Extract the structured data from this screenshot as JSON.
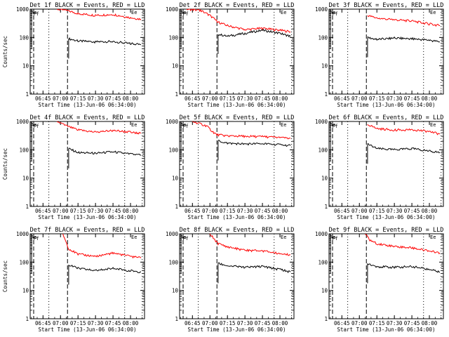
{
  "chart_data": [
    {
      "type": "line",
      "title": "Det 1f BLACK = Events, RED = LLD",
      "xlabel": "Start Time (13-Jun-06 06:34:00)",
      "ylabel": "Counts/sec",
      "x_ticks": [
        "06:45",
        "07:00",
        "07:15",
        "07:30",
        "07:45",
        "08:00"
      ],
      "y_ticks": [
        "1",
        "10",
        "100",
        "1000"
      ],
      "ylim": [
        1,
        1000
      ],
      "y_scale": "log",
      "markers": [
        "Aa",
        "Ff",
        "Ee"
      ],
      "series": [
        {
          "name": "Events",
          "color": "#000000",
          "x": [
            "07:07",
            "07:15",
            "07:30",
            "07:45",
            "08:00",
            "08:09"
          ],
          "values": [
            90,
            75,
            70,
            72,
            60,
            55
          ]
        },
        {
          "name": "LLD",
          "color": "#ff0000",
          "x": [
            "06:57",
            "07:05",
            "07:15",
            "07:30",
            "07:45",
            "08:00",
            "08:09"
          ],
          "values": [
            1000,
            900,
            700,
            600,
            650,
            500,
            440
          ]
        }
      ]
    },
    {
      "type": "line",
      "title": "Det 2f BLACK = Events, RED = LLD",
      "xlabel": "Start Time (13-Jun-06 06:34:00)",
      "ylabel": "",
      "x_ticks": [
        "06:45",
        "07:00",
        "07:15",
        "07:30",
        "07:45",
        "08:00"
      ],
      "y_ticks": [
        "1",
        "10",
        "100",
        "1000"
      ],
      "ylim": [
        1,
        1000
      ],
      "y_scale": "log",
      "markers": [
        "Aa",
        "Ff",
        "Ee"
      ],
      "series": [
        {
          "name": "Events",
          "color": "#000000",
          "x": [
            "07:07",
            "07:15",
            "07:30",
            "07:45",
            "08:00",
            "08:09"
          ],
          "values": [
            130,
            110,
            140,
            180,
            140,
            110
          ]
        },
        {
          "name": "LLD",
          "color": "#ff0000",
          "x": [
            "06:40",
            "06:52",
            "07:00",
            "07:07",
            "07:15",
            "07:30",
            "07:45",
            "08:00",
            "08:09"
          ],
          "values": [
            1000,
            900,
            600,
            350,
            260,
            190,
            210,
            180,
            160
          ]
        }
      ]
    },
    {
      "type": "line",
      "title": "Det 3f BLACK = Events, RED = LLD",
      "xlabel": "Start Time (13-Jun-06 06:34:00)",
      "ylabel": "",
      "x_ticks": [
        "06:45",
        "07:00",
        "07:15",
        "07:30",
        "07:45",
        "08:00"
      ],
      "y_ticks": [
        "1",
        "10",
        "100",
        "1000"
      ],
      "ylim": [
        1,
        1000
      ],
      "y_scale": "log",
      "markers": [
        "Aa",
        "Ff",
        "Ee"
      ],
      "series": [
        {
          "name": "Events",
          "color": "#000000",
          "x": [
            "07:07",
            "07:15",
            "07:30",
            "07:45",
            "08:00",
            "08:09"
          ],
          "values": [
            100,
            85,
            95,
            90,
            80,
            70
          ]
        },
        {
          "name": "LLD",
          "color": "#ff0000",
          "x": [
            "07:07",
            "07:15",
            "07:30",
            "07:45",
            "08:00",
            "08:09"
          ],
          "values": [
            600,
            480,
            420,
            380,
            300,
            260
          ]
        }
      ]
    },
    {
      "type": "line",
      "title": "Det 4f BLACK = Events, RED = LLD",
      "xlabel": "Start Time (13-Jun-06 06:34:00)",
      "ylabel": "Counts/sec",
      "x_ticks": [
        "06:45",
        "07:00",
        "07:15",
        "07:30",
        "07:45",
        "08:00"
      ],
      "y_ticks": [
        "1",
        "10",
        "100",
        "1000"
      ],
      "ylim": [
        1,
        1000
      ],
      "y_scale": "log",
      "markers": [
        "Aa",
        "Ff",
        "Ee"
      ],
      "series": [
        {
          "name": "Events",
          "color": "#000000",
          "x": [
            "07:07",
            "07:15",
            "07:30",
            "07:45",
            "08:00",
            "08:09"
          ],
          "values": [
            110,
            80,
            75,
            85,
            70,
            65
          ]
        },
        {
          "name": "LLD",
          "color": "#ff0000",
          "x": [
            "06:57",
            "07:05",
            "07:15",
            "07:30",
            "07:45",
            "08:00",
            "08:09"
          ],
          "values": [
            1000,
            700,
            500,
            420,
            480,
            420,
            380
          ]
        }
      ]
    },
    {
      "type": "line",
      "title": "Det 5f BLACK = Events, RED = LLD",
      "xlabel": "Start Time (13-Jun-06 06:34:00)",
      "ylabel": "",
      "x_ticks": [
        "06:45",
        "07:00",
        "07:15",
        "07:30",
        "07:45",
        "08:00"
      ],
      "y_ticks": [
        "1",
        "10",
        "100",
        "1000"
      ],
      "ylim": [
        1,
        1000
      ],
      "y_scale": "log",
      "markers": [
        "Aa",
        "Ff",
        "Ee"
      ],
      "series": [
        {
          "name": "Events",
          "color": "#000000",
          "x": [
            "07:07",
            "07:15",
            "07:30",
            "07:45",
            "08:00",
            "08:09"
          ],
          "values": [
            210,
            170,
            160,
            165,
            150,
            140
          ]
        },
        {
          "name": "LLD",
          "color": "#ff0000",
          "x": [
            "06:45",
            "06:57",
            "07:02",
            "07:06",
            "07:15",
            "07:30",
            "07:45",
            "08:00",
            "08:09"
          ],
          "values": [
            1000,
            700,
            450,
            340,
            310,
            300,
            290,
            270,
            250
          ]
        }
      ]
    },
    {
      "type": "line",
      "title": "Det 6f BLACK = Events, RED = LLD",
      "xlabel": "Start Time (13-Jun-06 06:34:00)",
      "ylabel": "",
      "x_ticks": [
        "06:45",
        "07:00",
        "07:15",
        "07:30",
        "07:45",
        "08:00"
      ],
      "y_ticks": [
        "1",
        "10",
        "100",
        "1000"
      ],
      "ylim": [
        1,
        1000
      ],
      "y_scale": "log",
      "markers": [
        "Aa",
        "Ff",
        "Ee"
      ],
      "series": [
        {
          "name": "Events",
          "color": "#000000",
          "x": [
            "07:07",
            "07:15",
            "07:30",
            "07:45",
            "08:00",
            "08:09"
          ],
          "values": [
            160,
            110,
            100,
            110,
            90,
            80
          ]
        },
        {
          "name": "LLD",
          "color": "#ff0000",
          "x": [
            "07:07",
            "07:15",
            "07:30",
            "07:45",
            "08:00",
            "08:09"
          ],
          "values": [
            800,
            560,
            500,
            520,
            440,
            360
          ]
        }
      ]
    },
    {
      "type": "line",
      "title": "Det 7f BLACK = Events, RED = LLD",
      "xlabel": "Start Time (13-Jun-06 06:34:00)",
      "ylabel": "Counts/sec",
      "x_ticks": [
        "06:45",
        "07:00",
        "07:15",
        "07:30",
        "07:45",
        "08:00"
      ],
      "y_ticks": [
        "1",
        "10",
        "100",
        "1000"
      ],
      "ylim": [
        1,
        1000
      ],
      "y_scale": "log",
      "markers": [
        "Aa",
        "Ff",
        "Ee"
      ],
      "series": [
        {
          "name": "Events",
          "color": "#000000",
          "x": [
            "07:07",
            "07:15",
            "07:30",
            "07:45",
            "08:00",
            "08:09"
          ],
          "values": [
            80,
            60,
            50,
            60,
            50,
            45
          ]
        },
        {
          "name": "LLD",
          "color": "#ff0000",
          "x": [
            "07:02",
            "07:07",
            "07:15",
            "07:30",
            "07:45",
            "08:00",
            "08:09"
          ],
          "values": [
            1000,
            300,
            190,
            160,
            210,
            160,
            140
          ]
        }
      ]
    },
    {
      "type": "line",
      "title": "Det 8f BLACK = Events, RED = LLD",
      "xlabel": "Start Time (13-Jun-06 06:34:00)",
      "ylabel": "",
      "x_ticks": [
        "06:45",
        "07:00",
        "07:15",
        "07:30",
        "07:45",
        "08:00"
      ],
      "y_ticks": [
        "1",
        "10",
        "100",
        "1000"
      ],
      "ylim": [
        1,
        1000
      ],
      "y_scale": "log",
      "markers": [
        "Aa",
        "Ff",
        "Ee"
      ],
      "series": [
        {
          "name": "Events",
          "color": "#000000",
          "x": [
            "07:07",
            "07:15",
            "07:30",
            "07:45",
            "08:00",
            "08:09"
          ],
          "values": [
            90,
            75,
            65,
            70,
            55,
            45
          ]
        },
        {
          "name": "LLD",
          "color": "#ff0000",
          "x": [
            "07:00",
            "07:07",
            "07:15",
            "07:30",
            "07:45",
            "08:00",
            "08:09"
          ],
          "values": [
            1000,
            450,
            350,
            260,
            250,
            200,
            180
          ]
        }
      ]
    },
    {
      "type": "line",
      "title": "Det 9f BLACK = Events, RED = LLD",
      "xlabel": "Start Time (13-Jun-06 06:34:00)",
      "ylabel": "",
      "x_ticks": [
        "06:45",
        "07:00",
        "07:15",
        "07:30",
        "07:45",
        "08:00"
      ],
      "y_ticks": [
        "1",
        "10",
        "100",
        "1000"
      ],
      "ylim": [
        1,
        1000
      ],
      "y_scale": "log",
      "markers": [
        "Aa",
        "Ff",
        "Ee"
      ],
      "series": [
        {
          "name": "Events",
          "color": "#000000",
          "x": [
            "07:07",
            "07:15",
            "07:30",
            "07:45",
            "08:00",
            "08:09"
          ],
          "values": [
            90,
            70,
            65,
            70,
            55,
            45
          ]
        },
        {
          "name": "LLD",
          "color": "#ff0000",
          "x": [
            "07:05",
            "07:09",
            "07:15",
            "07:30",
            "07:45",
            "08:00",
            "08:09"
          ],
          "values": [
            1000,
            600,
            450,
            360,
            320,
            250,
            210
          ]
        }
      ]
    }
  ]
}
